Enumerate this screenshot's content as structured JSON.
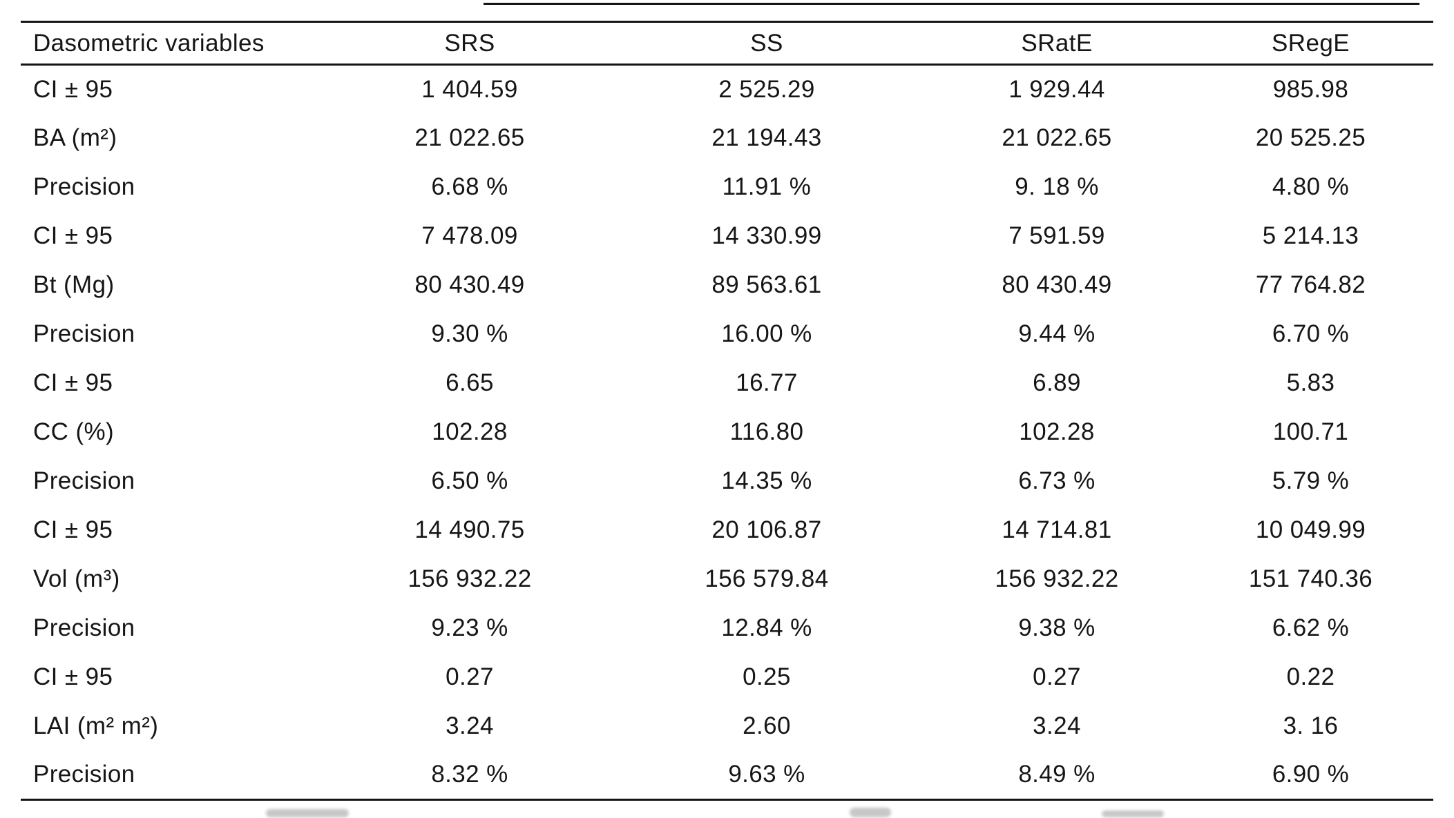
{
  "table": {
    "header": [
      "Dasometric variables",
      "SRS",
      "SS",
      "SRatE",
      "SRegE"
    ],
    "rows": [
      {
        "label": "CI ± 95",
        "values": [
          "1 404.59",
          "2 525.29",
          "1 929.44",
          "985.98"
        ]
      },
      {
        "label": "BA (m²)",
        "values": [
          "21 022.65",
          "21  194.43",
          "21 022.65",
          "20 525.25"
        ]
      },
      {
        "label": "Precision",
        "values": [
          "6.68 %",
          "11.91 %",
          "9. 18 %",
          "4.80 %"
        ]
      },
      {
        "label": "CI ± 95",
        "values": [
          "7  478.09",
          "14 330.99",
          "7 591.59",
          "5 214.13"
        ]
      },
      {
        "label": "Bt (Mg)",
        "values": [
          "80 430.49",
          "89 563.61",
          "80 430.49",
          "77 764.82"
        ]
      },
      {
        "label": "Precision",
        "values": [
          "9.30 %",
          "16.00 %",
          "9.44 %",
          "6.70 %"
        ]
      },
      {
        "label": "CI ± 95",
        "values": [
          "6.65",
          "16.77",
          "6.89",
          "5.83"
        ]
      },
      {
        "label": "CC (%)",
        "values": [
          "102.28",
          "116.80",
          "102.28",
          "100.71"
        ]
      },
      {
        "label": "Precision",
        "values": [
          "6.50 %",
          "14.35 %",
          "6.73 %",
          "5.79 %"
        ]
      },
      {
        "label": "CI ± 95",
        "values": [
          "14 490.75",
          "20  106.87",
          "14 714.81",
          "10 049.99"
        ]
      },
      {
        "label": "Vol (m³)",
        "values": [
          "156 932.22",
          "156 579.84",
          "156 932.22",
          "151 740.36"
        ]
      },
      {
        "label": "Precision",
        "values": [
          "9.23 %",
          "12.84 %",
          "9.38 %",
          "6.62 %"
        ]
      },
      {
        "label": "CI ± 95",
        "values": [
          "0.27",
          "0.25",
          "0.27",
          "0.22"
        ]
      },
      {
        "label": "LAI (m² m²)",
        "values": [
          "3.24",
          "2.60",
          "3.24",
          "3. 16"
        ]
      },
      {
        "label": "Precision",
        "values": [
          "8.32 %",
          "9.63 %",
          "8.49 %",
          "6.90 %"
        ]
      }
    ]
  }
}
